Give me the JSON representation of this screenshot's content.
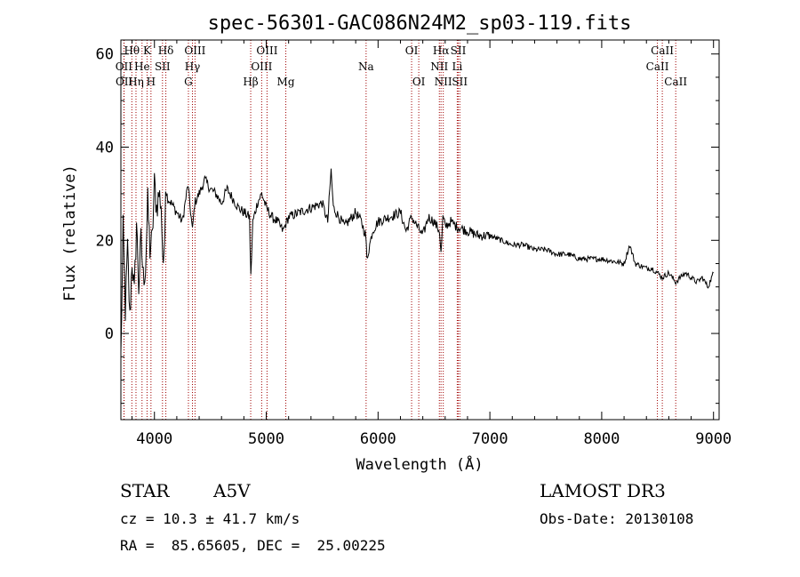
{
  "chart_data": {
    "type": "line",
    "title": "spec-56301-GAC086N24M2_sp03-119.fits",
    "xlabel": "Wavelength (Å)",
    "ylabel": "Flux (relative)",
    "xlim": [
      3700,
      9050
    ],
    "ylim": [
      -18.5,
      63
    ],
    "xticks": [
      4000,
      5000,
      6000,
      7000,
      8000,
      9000
    ],
    "yticks": [
      0,
      20,
      40,
      60
    ],
    "series": [
      {
        "name": "spectrum",
        "x": [
          3700,
          3720,
          3740,
          3760,
          3780,
          3800,
          3820,
          3840,
          3860,
          3880,
          3900,
          3920,
          3940,
          3960,
          3980,
          4000,
          4020,
          4040,
          4060,
          4080,
          4100,
          4120,
          4150,
          4200,
          4250,
          4300,
          4340,
          4360,
          4400,
          4450,
          4500,
          4550,
          4600,
          4650,
          4700,
          4750,
          4800,
          4850,
          4862,
          4880,
          4920,
          4960,
          5000,
          5050,
          5100,
          5150,
          5200,
          5300,
          5400,
          5500,
          5550,
          5580,
          5600,
          5650,
          5700,
          5800,
          5850,
          5890,
          5900,
          5950,
          6000,
          6100,
          6200,
          6250,
          6300,
          6350,
          6400,
          6450,
          6500,
          6550,
          6563,
          6580,
          6600,
          6650,
          6700,
          6800,
          6900,
          7000,
          7100,
          7200,
          7300,
          7400,
          7500,
          7600,
          7700,
          7800,
          7900,
          8000,
          8100,
          8200,
          8250,
          8300,
          8350,
          8400,
          8450,
          8500,
          8542,
          8600,
          8662,
          8700,
          8750,
          8800,
          8850,
          8900,
          8950,
          9000
        ],
        "y": [
          -5,
          22,
          5,
          18,
          3,
          16,
          8,
          24,
          10,
          20,
          12,
          14,
          28,
          18,
          20,
          32,
          27,
          30,
          28,
          12,
          31,
          29,
          28,
          26,
          24,
          32,
          22,
          28,
          30,
          33,
          31,
          30,
          28,
          31,
          29,
          27,
          26,
          25,
          12,
          24,
          28,
          30,
          27,
          25,
          24,
          22,
          25,
          26,
          27,
          28,
          24,
          35,
          27,
          25,
          23,
          26,
          24,
          21,
          16,
          22,
          24,
          25,
          26,
          22,
          25,
          23,
          21,
          25,
          24,
          22,
          17,
          25,
          23,
          24,
          23,
          22,
          21,
          21,
          20,
          19,
          19,
          18,
          18,
          17,
          17,
          16,
          16,
          16,
          15.5,
          15,
          19,
          15,
          14.5,
          14,
          14,
          13,
          12,
          13,
          11,
          12,
          13,
          12,
          11,
          12,
          10,
          13
        ]
      }
    ],
    "spectral_lines": [
      {
        "label": "Hθ",
        "wl": 3798,
        "row": 1
      },
      {
        "label": "OII",
        "wl": 3727,
        "row": 2
      },
      {
        "label": "OII",
        "wl": 3729,
        "row": 3
      },
      {
        "label": "Hη",
        "wl": 3835,
        "row": 3
      },
      {
        "label": "He",
        "wl": 3889,
        "row": 2
      },
      {
        "label": "K",
        "wl": 3934,
        "row": 1
      },
      {
        "label": "H",
        "wl": 3969,
        "row": 3
      },
      {
        "label": "SII",
        "wl": 4072,
        "row": 2
      },
      {
        "label": "Hδ",
        "wl": 4102,
        "row": 1
      },
      {
        "label": "OIII",
        "wl": 4363,
        "row": 1
      },
      {
        "label": "Hγ",
        "wl": 4340,
        "row": 2
      },
      {
        "label": "G",
        "wl": 4304,
        "row": 3
      },
      {
        "label": "Hβ",
        "wl": 4861,
        "row": 3
      },
      {
        "label": "OIII",
        "wl": 5007,
        "row": 1
      },
      {
        "label": "OIII",
        "wl": 4959,
        "row": 2
      },
      {
        "label": "Mg",
        "wl": 5175,
        "row": 3
      },
      {
        "label": "Na",
        "wl": 5893,
        "row": 2
      },
      {
        "label": "OI",
        "wl": 6300,
        "row": 1
      },
      {
        "label": "OI",
        "wl": 6364,
        "row": 3
      },
      {
        "label": "Hα",
        "wl": 6563,
        "row": 1
      },
      {
        "label": "NII",
        "wl": 6548,
        "row": 2
      },
      {
        "label": "NII",
        "wl": 6583,
        "row": 3
      },
      {
        "label": "SII",
        "wl": 6717,
        "row": 1
      },
      {
        "label": "Li",
        "wl": 6708,
        "row": 2
      },
      {
        "label": "SII",
        "wl": 6731,
        "row": 3
      },
      {
        "label": "CaII",
        "wl": 8542,
        "row": 1
      },
      {
        "label": "CaII",
        "wl": 8498,
        "row": 2
      },
      {
        "label": "CaII",
        "wl": 8662,
        "row": 3
      }
    ]
  },
  "info": {
    "object_type": "STAR",
    "subclass": "A5V",
    "survey": "LAMOST DR3",
    "cz": "cz = 10.3 ± 41.7 km/s",
    "obs_date": "Obs-Date: 20130108",
    "radec": "RA =  85.65605, DEC =  25.00225"
  }
}
